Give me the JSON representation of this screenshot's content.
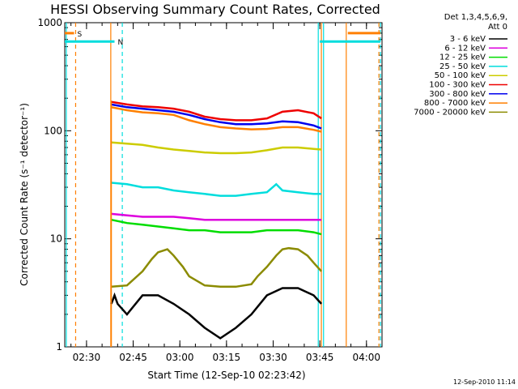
{
  "chart_data": {
    "type": "line",
    "title": "HESSI Observing Summary Count Rates, Corrected",
    "xlabel": "Start Time (12-Sep-10 02:23:42)",
    "ylabel": "Corrected Count Rate (s⁻¹ detector⁻¹)",
    "y_scale": "log",
    "ylim": [
      1,
      1000
    ],
    "xlim_minutes_after_0223": [
      0,
      102
    ],
    "y_ticks": [
      1,
      10,
      100,
      1000
    ],
    "y_tick_labels": [
      "1",
      "10",
      "100",
      "1000"
    ],
    "x_ticks": [
      {
        "label": "02:30",
        "min": 7
      },
      {
        "label": "02:45",
        "min": 22
      },
      {
        "label": "03:00",
        "min": 37
      },
      {
        "label": "03:15",
        "min": 52
      },
      {
        "label": "03:30",
        "min": 67
      },
      {
        "label": "03:45",
        "min": 82
      },
      {
        "label": "04:00",
        "min": 97
      }
    ],
    "legend_header": [
      "Det 1,3,4,5,6,9,",
      "Att 0"
    ],
    "legend_position": "right",
    "series": [
      {
        "name": "3 - 6 keV",
        "color": "#000000",
        "x": [
          15,
          16,
          17,
          20,
          25,
          30,
          35,
          40,
          45,
          50,
          55,
          60,
          65,
          70,
          75,
          80,
          82.5
        ],
        "y": [
          2.5,
          3,
          2.5,
          2,
          3,
          3,
          2.5,
          2,
          1.5,
          1.2,
          1.5,
          2,
          3,
          3.5,
          3.5,
          3,
          2.5
        ]
      },
      {
        "name": "6 - 12 keV",
        "color": "#dd00dd",
        "x": [
          15,
          20,
          25,
          30,
          35,
          40,
          45,
          50,
          55,
          60,
          65,
          70,
          75,
          80,
          82.5
        ],
        "y": [
          17,
          16.5,
          16,
          16,
          16,
          15.5,
          15,
          15,
          15,
          15,
          15,
          15,
          15,
          15,
          15
        ]
      },
      {
        "name": "12 - 25 keV",
        "color": "#00dd00",
        "x": [
          15,
          20,
          25,
          30,
          35,
          40,
          45,
          50,
          55,
          60,
          65,
          70,
          75,
          80,
          82.5
        ],
        "y": [
          15,
          14,
          13.5,
          13,
          12.5,
          12,
          12,
          11.5,
          11.5,
          11.5,
          12,
          12,
          12,
          11.5,
          11
        ]
      },
      {
        "name": "25 - 50 keV",
        "color": "#00dddd",
        "x": [
          15,
          20,
          25,
          30,
          35,
          40,
          45,
          50,
          55,
          60,
          65,
          68,
          70,
          75,
          80,
          82.5
        ],
        "y": [
          33,
          32,
          30,
          30,
          28,
          27,
          26,
          25,
          25,
          26,
          27,
          32,
          28,
          27,
          26,
          26
        ]
      },
      {
        "name": "50 - 100 keV",
        "color": "#cccc00",
        "x": [
          15,
          20,
          25,
          30,
          35,
          40,
          45,
          50,
          55,
          60,
          65,
          70,
          75,
          80,
          82.5
        ],
        "y": [
          78,
          76,
          74,
          70,
          67,
          65,
          63,
          62,
          62,
          63,
          66,
          70,
          70,
          68,
          67
        ]
      },
      {
        "name": "100 - 300 keV",
        "color": "#ee0000",
        "x": [
          15,
          20,
          25,
          30,
          35,
          40,
          45,
          50,
          55,
          60,
          65,
          70,
          75,
          80,
          82.5
        ],
        "y": [
          185,
          175,
          168,
          165,
          160,
          150,
          135,
          128,
          125,
          125,
          130,
          150,
          155,
          145,
          130
        ]
      },
      {
        "name": "300 - 800 keV",
        "color": "#0000ee",
        "x": [
          15,
          20,
          25,
          30,
          35,
          40,
          45,
          50,
          55,
          60,
          65,
          70,
          75,
          80,
          82.5
        ],
        "y": [
          175,
          165,
          160,
          155,
          150,
          140,
          128,
          120,
          115,
          115,
          117,
          122,
          120,
          112,
          105
        ]
      },
      {
        "name": "800 - 7000 keV",
        "color": "#ff7f00",
        "x": [
          15,
          20,
          25,
          30,
          35,
          40,
          45,
          50,
          55,
          60,
          65,
          70,
          75,
          80,
          82.5
        ],
        "y": [
          165,
          155,
          148,
          145,
          140,
          125,
          115,
          108,
          105,
          103,
          104,
          108,
          108,
          102,
          98
        ]
      },
      {
        "name": "7000 - 20000 keV",
        "color": "#8b8b00",
        "x": [
          15,
          20,
          25,
          28,
          30,
          33,
          35,
          38,
          40,
          45,
          50,
          55,
          60,
          62,
          65,
          68,
          70,
          72,
          75,
          78,
          80,
          82.5
        ],
        "y": [
          3.6,
          3.7,
          5,
          6.5,
          7.5,
          8,
          7,
          5.5,
          4.5,
          3.7,
          3.6,
          3.6,
          3.8,
          4.5,
          5.5,
          7,
          8,
          8.2,
          8,
          7,
          6,
          5
        ]
      }
    ],
    "annotations": [
      {
        "type": "flag_bar",
        "label": "S",
        "color": "#ff7f00",
        "x_start": 0,
        "x_end": 3,
        "y": 800
      },
      {
        "type": "flag_bar",
        "label": "N",
        "color": "#00dddd",
        "x_start": 0,
        "x_end": 16,
        "y": 670
      },
      {
        "type": "flag_bar",
        "label": "",
        "color": "#00dddd",
        "x_start": 82,
        "x_end": 101.5,
        "y": 670
      },
      {
        "type": "flag_bar",
        "label": "",
        "color": "#ff7f00",
        "x_start": 91,
        "x_end": 101.5,
        "y": 800
      },
      {
        "type": "vline",
        "color": "#ff7f00",
        "dashed": true,
        "x": 3.5
      },
      {
        "type": "vline",
        "color": "#ff7f00",
        "dashed": false,
        "x": 14.8
      },
      {
        "type": "vline",
        "color": "#00dddd",
        "dashed": true,
        "x": 18.5
      },
      {
        "type": "vline",
        "color": "#00dddd",
        "dashed": false,
        "x": 0.5
      },
      {
        "type": "vline",
        "color": "#00dddd",
        "dashed": false,
        "x": 81.5
      },
      {
        "type": "vline",
        "color": "#ff7f00",
        "dashed": false,
        "x": 82.5
      },
      {
        "type": "vline",
        "color": "#00dddd",
        "dashed": false,
        "x": 83.2
      },
      {
        "type": "vline",
        "color": "#ff7f00",
        "dashed": false,
        "x": 90.5
      },
      {
        "type": "vline",
        "color": "#ff7f00",
        "dashed": true,
        "x": 101
      },
      {
        "type": "vline",
        "color": "#00dddd",
        "dashed": true,
        "x": 101.5
      }
    ],
    "timestamp": "12-Sep-2010 11:14"
  }
}
